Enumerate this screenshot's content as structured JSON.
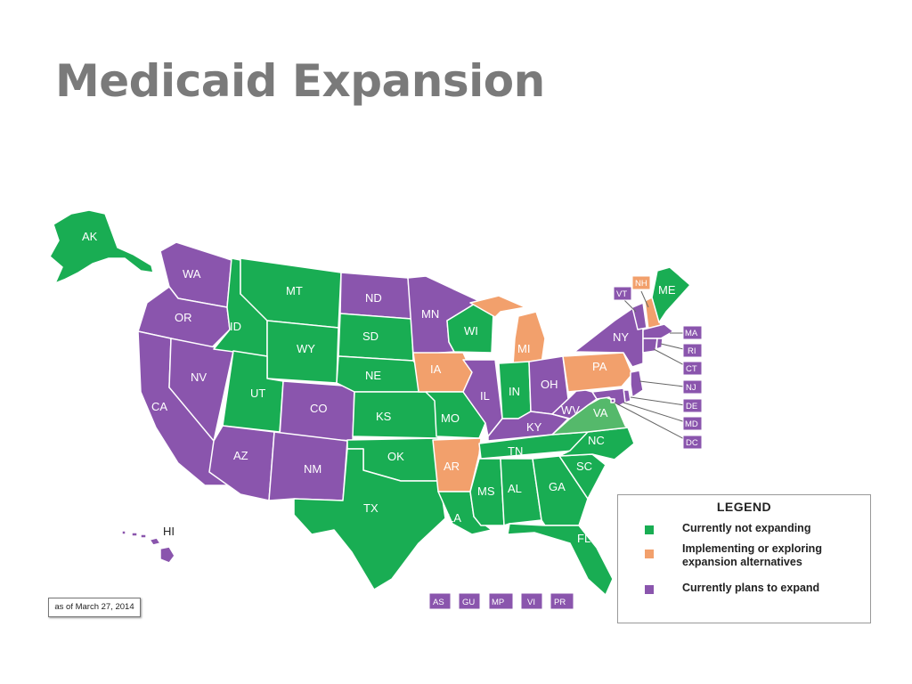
{
  "title": "Medicaid Expansion",
  "as_of": "as of March 27, 2014",
  "colors": {
    "not_expanding": "#19ad53",
    "virginia": "#55b96b",
    "alternatives": "#f2a06c",
    "expanding": "#8a55ad"
  },
  "legend": {
    "title": "LEGEND",
    "items": [
      {
        "label": "Currently not expanding",
        "status": "not_expanding"
      },
      {
        "label": "Implementing or exploring expansion alternatives",
        "status": "alternatives"
      },
      {
        "label": "Currently plans to expand",
        "status": "expanding"
      }
    ]
  },
  "states": {
    "AK": {
      "label": "AK",
      "status": "not_expanding"
    },
    "HI": {
      "label": "HI",
      "status": "expanding"
    },
    "WA": {
      "label": "WA",
      "status": "expanding"
    },
    "OR": {
      "label": "OR",
      "status": "expanding"
    },
    "CA": {
      "label": "CA",
      "status": "expanding"
    },
    "NV": {
      "label": "NV",
      "status": "expanding"
    },
    "ID": {
      "label": "ID",
      "status": "not_expanding"
    },
    "MT": {
      "label": "MT",
      "status": "not_expanding"
    },
    "WY": {
      "label": "WY",
      "status": "not_expanding"
    },
    "UT": {
      "label": "UT",
      "status": "not_expanding"
    },
    "AZ": {
      "label": "AZ",
      "status": "expanding"
    },
    "CO": {
      "label": "CO",
      "status": "expanding"
    },
    "NM": {
      "label": "NM",
      "status": "expanding"
    },
    "ND": {
      "label": "ND",
      "status": "expanding"
    },
    "SD": {
      "label": "SD",
      "status": "not_expanding"
    },
    "NE": {
      "label": "NE",
      "status": "not_expanding"
    },
    "KS": {
      "label": "KS",
      "status": "not_expanding"
    },
    "OK": {
      "label": "OK",
      "status": "not_expanding"
    },
    "TX": {
      "label": "TX",
      "status": "not_expanding"
    },
    "MN": {
      "label": "MN",
      "status": "expanding"
    },
    "IA": {
      "label": "IA",
      "status": "alternatives"
    },
    "MO": {
      "label": "MO",
      "status": "not_expanding"
    },
    "AR": {
      "label": "AR",
      "status": "alternatives"
    },
    "LA": {
      "label": "LA",
      "status": "not_expanding"
    },
    "WI": {
      "label": "WI",
      "status": "not_expanding"
    },
    "IL": {
      "label": "IL",
      "status": "expanding"
    },
    "MI": {
      "label": "MI",
      "status": "alternatives"
    },
    "IN": {
      "label": "IN",
      "status": "not_expanding"
    },
    "OH": {
      "label": "OH",
      "status": "expanding"
    },
    "KY": {
      "label": "KY",
      "status": "expanding"
    },
    "TN": {
      "label": "TN",
      "status": "not_expanding"
    },
    "MS": {
      "label": "MS",
      "status": "not_expanding"
    },
    "AL": {
      "label": "AL",
      "status": "not_expanding"
    },
    "GA": {
      "label": "GA",
      "status": "not_expanding"
    },
    "FL": {
      "label": "FL",
      "status": "not_expanding"
    },
    "SC": {
      "label": "SC",
      "status": "not_expanding"
    },
    "NC": {
      "label": "NC",
      "status": "not_expanding"
    },
    "VA": {
      "label": "VA",
      "status": "virginia"
    },
    "WV": {
      "label": "WV",
      "status": "expanding"
    },
    "PA": {
      "label": "PA",
      "status": "alternatives"
    },
    "NY": {
      "label": "NY",
      "status": "expanding"
    },
    "ME": {
      "label": "ME",
      "status": "not_expanding"
    },
    "NH": {
      "label": "NH",
      "status": "alternatives"
    },
    "VT": {
      "label": "VT",
      "status": "expanding"
    },
    "MA": {
      "label": "MA",
      "status": "expanding"
    },
    "RI": {
      "label": "RI",
      "status": "expanding"
    },
    "CT": {
      "label": "CT",
      "status": "expanding"
    },
    "NJ": {
      "label": "NJ",
      "status": "expanding"
    },
    "DE": {
      "label": "DE",
      "status": "expanding"
    },
    "MD": {
      "label": "MD",
      "status": "expanding"
    },
    "DC": {
      "label": "DC",
      "status": "expanding"
    }
  },
  "territories": [
    {
      "label": "AS",
      "status": "expanding"
    },
    {
      "label": "GU",
      "status": "expanding"
    },
    {
      "label": "MP",
      "status": "expanding"
    },
    {
      "label": "VI",
      "status": "expanding"
    },
    {
      "label": "PR",
      "status": "expanding"
    }
  ]
}
